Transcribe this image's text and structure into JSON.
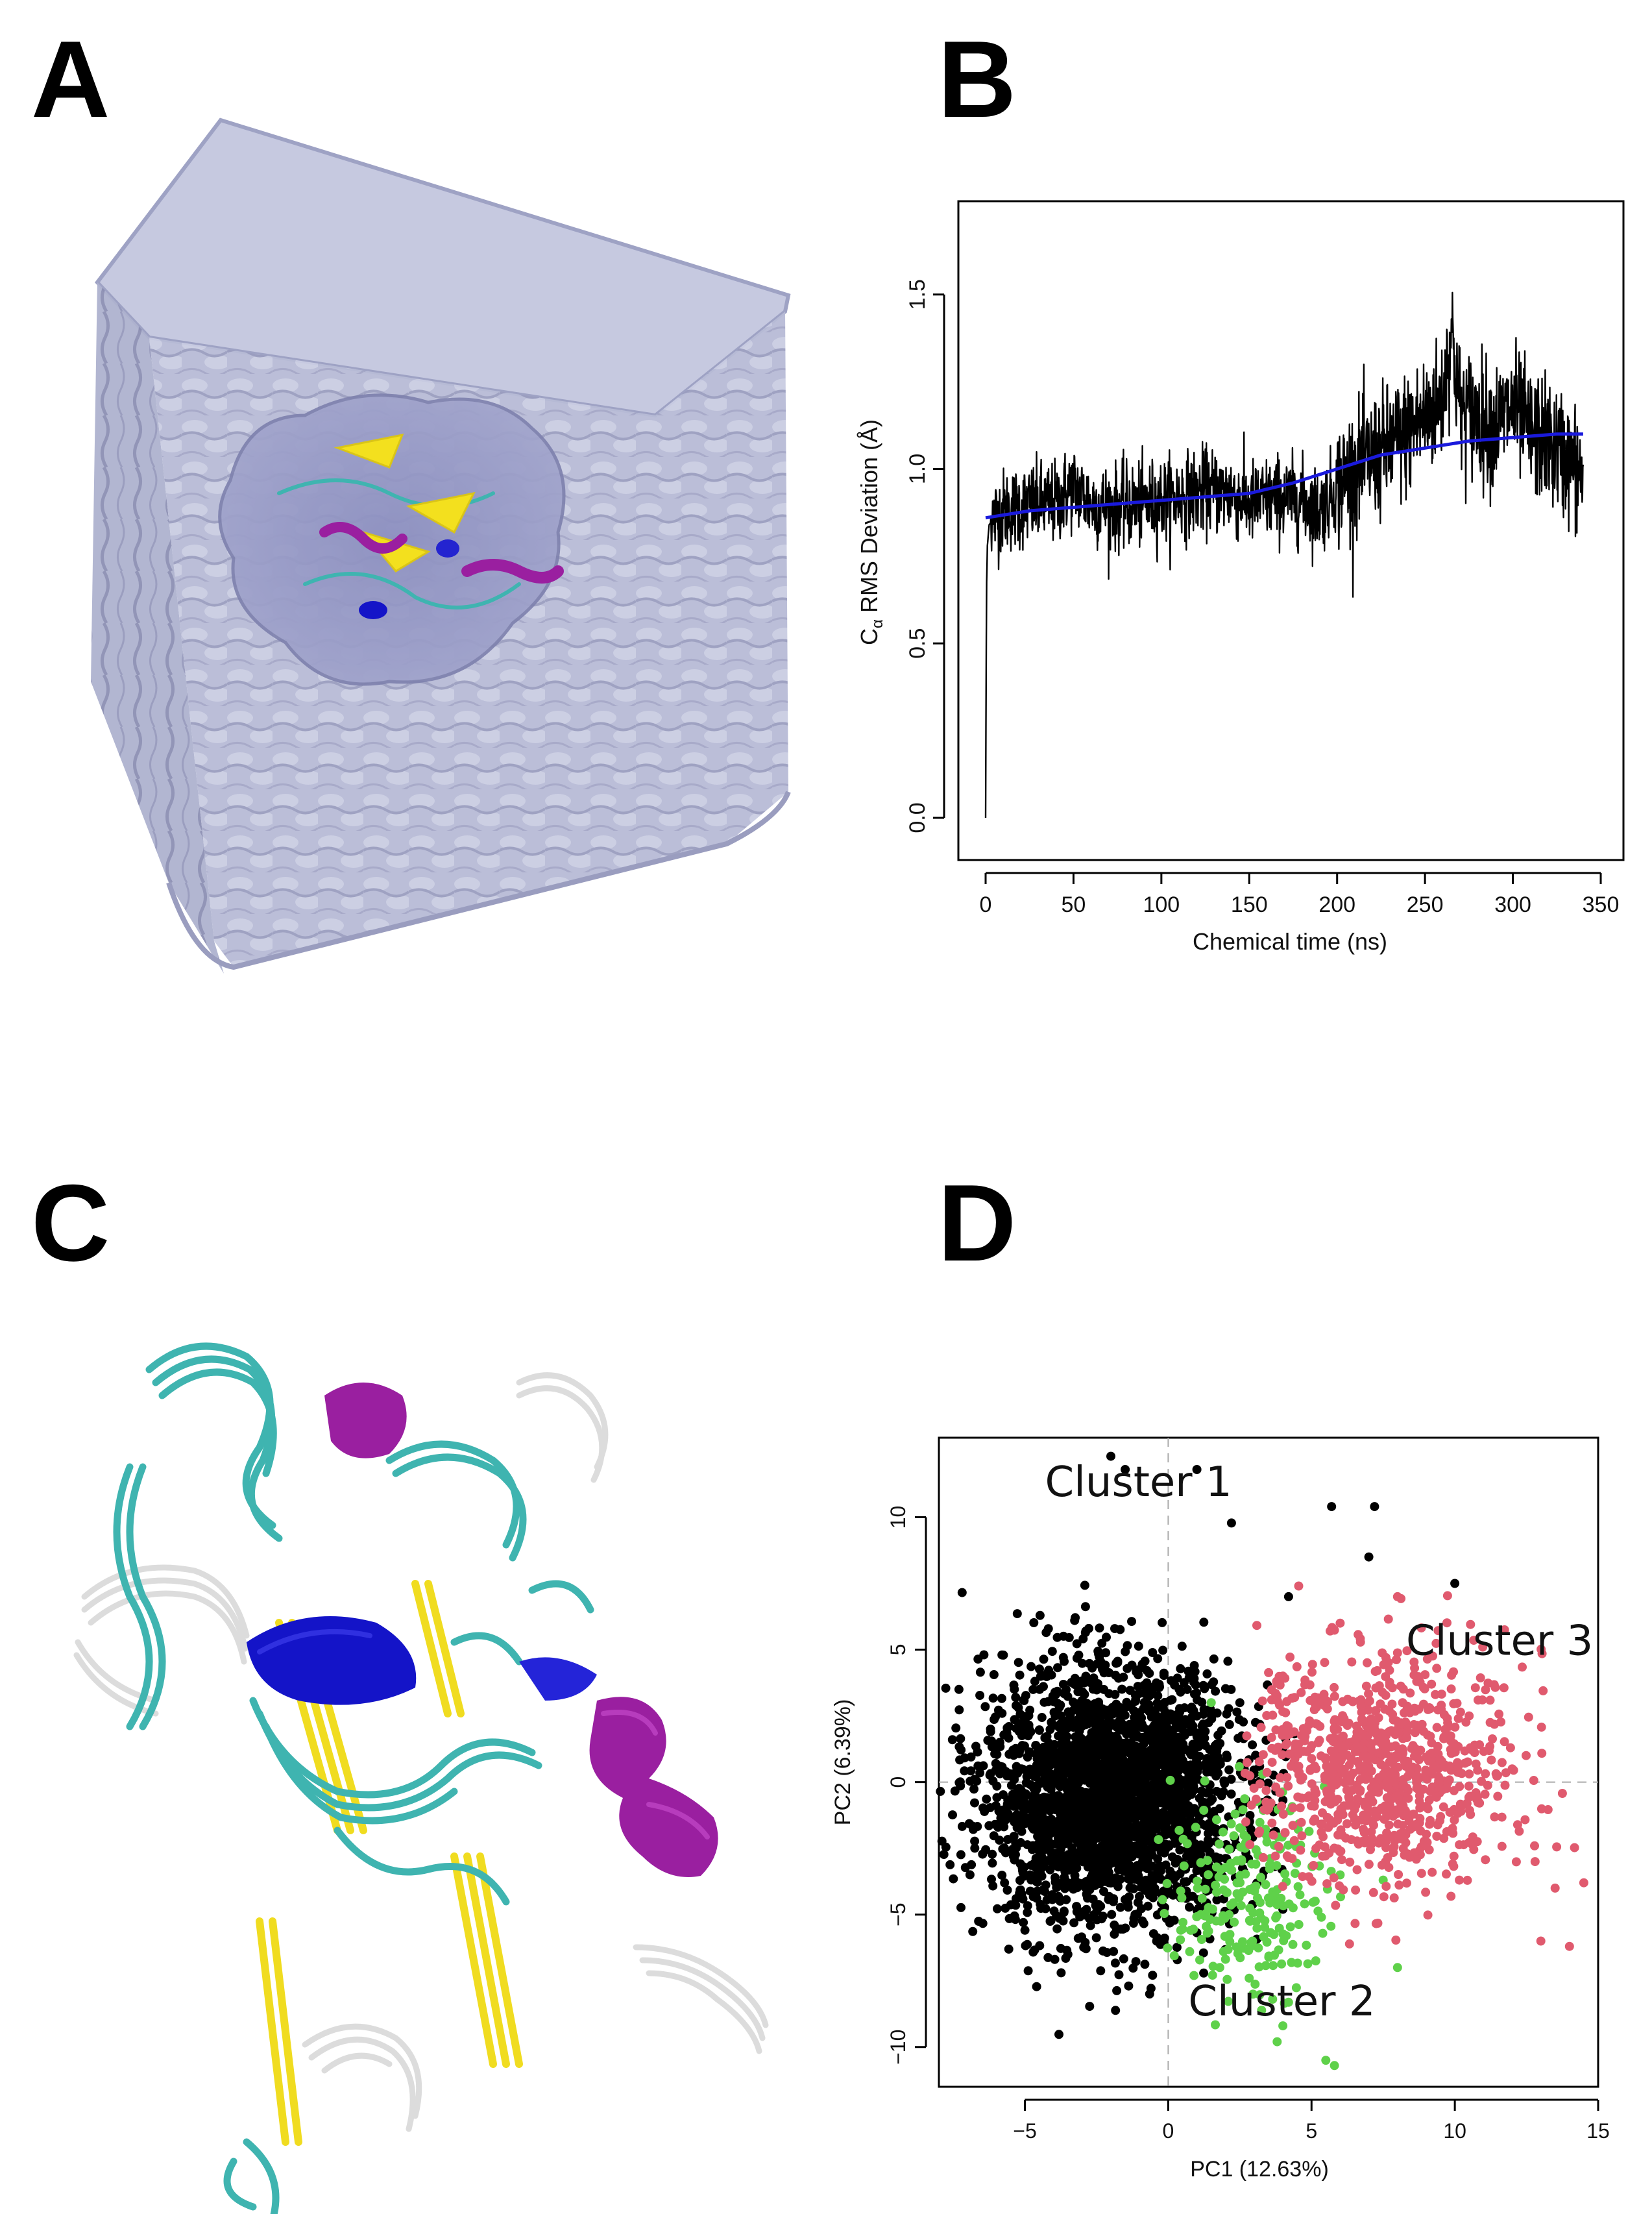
{
  "panels": {
    "a": {
      "letter": "A"
    },
    "b": {
      "letter": "B"
    },
    "c": {
      "letter": "C"
    },
    "d": {
      "letter": "D"
    }
  },
  "colors": {
    "rmsd_line": "#000000",
    "rmsd_smooth": "#1a1adc",
    "cluster1": "#000000",
    "cluster2": "#5fd14a",
    "cluster3": "#e05a6e",
    "water_box": "#b9bdd8",
    "helix": "#9a1fa0",
    "strand": "#f3e01e",
    "coil": "#3fb4b0",
    "turn": "#e4e4e4",
    "helix310": "#1414c8"
  },
  "chart_data": [
    {
      "panel": "B",
      "type": "line",
      "xlabel": "Chemical time (ns)",
      "ylabel_main": "C",
      "ylabel_sub": "α",
      "ylabel_rest": " RMS Deviation (Å)",
      "xlim": [
        0,
        350
      ],
      "ylim": [
        0,
        1.6
      ],
      "xticks": [
        0,
        50,
        100,
        150,
        200,
        250,
        300,
        350
      ],
      "yticks": [
        0.0,
        0.5,
        1.0,
        1.5
      ],
      "xtick_labels": [
        "0",
        "50",
        "100",
        "150",
        "200",
        "250",
        "300",
        "350"
      ],
      "ytick_labels": [
        "0.0",
        "0.5",
        "1.0",
        "1.5"
      ],
      "series": [
        {
          "style": "raw",
          "x": [
            0,
            0.5,
            1,
            2,
            5,
            10,
            20,
            30,
            40,
            45,
            50,
            60,
            75,
            90,
            100,
            110,
            125,
            140,
            150,
            165,
            180,
            190,
            200,
            210,
            220,
            235,
            250,
            260,
            265,
            270,
            280,
            290,
            300,
            310,
            320,
            330,
            340
          ],
          "y": [
            0.0,
            0.65,
            0.78,
            0.84,
            0.86,
            0.88,
            0.89,
            0.9,
            0.9,
            0.93,
            0.95,
            0.9,
            0.89,
            0.9,
            0.91,
            0.92,
            0.94,
            0.93,
            0.9,
            0.92,
            0.91,
            0.88,
            0.95,
            1.0,
            1.03,
            1.08,
            1.15,
            1.2,
            1.4,
            1.17,
            1.15,
            1.12,
            1.18,
            1.1,
            1.08,
            1.03,
            0.98
          ]
        },
        {
          "style": "smooth",
          "x": [
            0,
            25,
            50,
            75,
            100,
            125,
            150,
            175,
            200,
            225,
            250,
            275,
            300,
            325,
            340
          ],
          "y": [
            0.86,
            0.88,
            0.89,
            0.9,
            0.91,
            0.92,
            0.93,
            0.96,
            1.0,
            1.04,
            1.06,
            1.08,
            1.09,
            1.1,
            1.1
          ]
        }
      ]
    },
    {
      "panel": "D",
      "type": "scatter",
      "xlabel": "PC1 (12.63%)",
      "ylabel": "PC2 (6.39%)",
      "xlim": [
        -8,
        15
      ],
      "ylim": [
        -11.5,
        13
      ],
      "xticks": [
        -5,
        0,
        5,
        10,
        15
      ],
      "yticks": [
        -10,
        -5,
        0,
        5,
        10
      ],
      "xtick_labels": [
        "−5",
        "0",
        "5",
        "10",
        "15"
      ],
      "ytick_labels": [
        "−10",
        "−5",
        "0",
        "5",
        "10"
      ],
      "reference_lines": {
        "x": 0,
        "y": 0
      },
      "series": [
        {
          "name": "Cluster 1",
          "center": [
            -2,
            -0.5
          ],
          "spread": [
            2.2,
            2.4
          ],
          "approx_count": 2600,
          "sample_points": [
            [
              -7.3,
              3.5
            ],
            [
              -2.0,
              12.3
            ],
            [
              -1.5,
              11.8
            ],
            [
              1.0,
              11.8
            ],
            [
              4.2,
              7.0
            ],
            [
              5.7,
              10.4
            ],
            [
              7.0,
              8.5
            ],
            [
              7.2,
              10.4
            ],
            [
              10.0,
              7.5
            ],
            [
              -5.8,
              4.8
            ],
            [
              -6.2,
              2.0
            ],
            [
              -3.5,
              -6.5
            ],
            [
              4.0,
              -4.8
            ],
            [
              2.5,
              3.0
            ]
          ]
        },
        {
          "name": "Cluster 2",
          "center": [
            2.8,
            -4.3
          ],
          "spread": [
            1.3,
            1.9
          ],
          "approx_count": 230,
          "sample_points": [
            [
              1.5,
              3.0
            ],
            [
              1.8,
              -7.0
            ],
            [
              5.8,
              -10.7
            ],
            [
              5.5,
              -10.5
            ],
            [
              8.0,
              -7.0
            ],
            [
              6.0,
              -3.5
            ],
            [
              7.5,
              -3.7
            ],
            [
              0.9,
              -7.3
            ],
            [
              4.0,
              -9.2
            ],
            [
              3.8,
              -9.8
            ]
          ]
        },
        {
          "name": "Cluster 3",
          "center": [
            7.5,
            0.5
          ],
          "spread": [
            2.2,
            2.2
          ],
          "approx_count": 900,
          "sample_points": [
            [
              14.5,
              -3.8
            ],
            [
              14.0,
              -6.2
            ],
            [
              13.0,
              -6.0
            ],
            [
              12.8,
              -3.0
            ],
            [
              13.5,
              -4.0
            ],
            [
              4.0,
              4.0
            ],
            [
              6.0,
              6.0
            ],
            [
              8.0,
              7.0
            ],
            [
              3.5,
              -1.0
            ],
            [
              10.5,
              2.5
            ],
            [
              12.0,
              0.5
            ]
          ]
        }
      ],
      "annotations": [
        {
          "text": "Cluster 1",
          "at": [
            -4.3,
            10.8
          ]
        },
        {
          "text": "Cluster 2",
          "at": [
            0.7,
            -8.8
          ]
        },
        {
          "text": "Cluster 3",
          "at": [
            8.3,
            4.8
          ]
        }
      ]
    }
  ]
}
